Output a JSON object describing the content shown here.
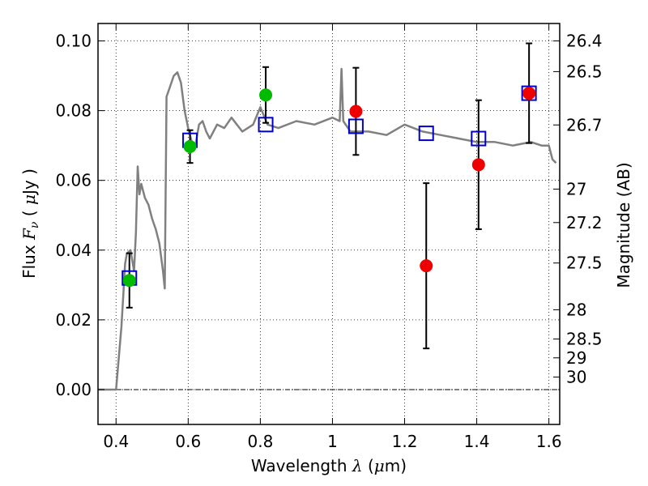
{
  "chart_data": {
    "type": "scatter",
    "xlabel": "Wavelength  λ (μm)",
    "ylabel": "Flux  Fν  ( μJy )",
    "y2label": "Magnitude (AB)",
    "xlim": [
      0.35,
      1.63
    ],
    "ylim": [
      -0.01,
      0.105
    ],
    "grid": true,
    "x_ticks": [
      0.4,
      0.6,
      0.8,
      1.0,
      1.2,
      1.4,
      1.6
    ],
    "x_tick_labels": [
      "0.4",
      "0.6",
      "0.8",
      "1",
      "1.2",
      "1.4",
      "1.6"
    ],
    "y_ticks": [
      0.0,
      0.02,
      0.04,
      0.06,
      0.08,
      0.1
    ],
    "y_tick_labels": [
      "0.00",
      "0.02",
      "0.04",
      "0.06",
      "0.08",
      "0.10"
    ],
    "right_ticks": [
      {
        "label": "26.4",
        "flux": 0.1
      },
      {
        "label": "26.5",
        "flux": 0.0912
      },
      {
        "label": "26.7",
        "flux": 0.0759
      },
      {
        "label": "27",
        "flux": 0.0575
      },
      {
        "label": "27.2",
        "flux": 0.0479
      },
      {
        "label": "27.5",
        "flux": 0.0363
      },
      {
        "label": "28",
        "flux": 0.0229
      },
      {
        "label": "28.5",
        "flux": 0.0145
      },
      {
        "label": "29",
        "flux": 0.0091
      },
      {
        "label": "30",
        "flux": 0.0036
      }
    ],
    "model_spectrum": {
      "color": "#808080",
      "x": [
        0.35,
        0.4,
        0.415,
        0.42,
        0.425,
        0.43,
        0.44,
        0.45,
        0.455,
        0.46,
        0.465,
        0.47,
        0.48,
        0.49,
        0.5,
        0.51,
        0.52,
        0.53,
        0.535,
        0.54,
        0.55,
        0.56,
        0.57,
        0.58,
        0.59,
        0.6,
        0.61,
        0.62,
        0.63,
        0.64,
        0.65,
        0.66,
        0.68,
        0.7,
        0.72,
        0.75,
        0.78,
        0.8,
        0.82,
        0.85,
        0.9,
        0.95,
        1.0,
        1.02,
        1.025,
        1.03,
        1.05,
        1.1,
        1.15,
        1.2,
        1.25,
        1.3,
        1.35,
        1.4,
        1.45,
        1.5,
        1.55,
        1.58,
        1.6,
        1.61,
        1.62
      ],
      "y": [
        0.0,
        0.0,
        0.018,
        0.027,
        0.036,
        0.039,
        0.04,
        0.034,
        0.045,
        0.064,
        0.056,
        0.059,
        0.055,
        0.053,
        0.049,
        0.046,
        0.042,
        0.034,
        0.029,
        0.084,
        0.087,
        0.09,
        0.091,
        0.088,
        0.08,
        0.075,
        0.071,
        0.07,
        0.076,
        0.077,
        0.074,
        0.072,
        0.076,
        0.075,
        0.078,
        0.074,
        0.076,
        0.081,
        0.076,
        0.075,
        0.077,
        0.076,
        0.078,
        0.077,
        0.092,
        0.077,
        0.074,
        0.074,
        0.073,
        0.076,
        0.074,
        0.073,
        0.072,
        0.071,
        0.071,
        0.07,
        0.071,
        0.07,
        0.07,
        0.066,
        0.065
      ]
    },
    "series": [
      {
        "marker": "square",
        "color": "#0000cc",
        "x": [
          0.437,
          0.605,
          0.815,
          1.065,
          1.26,
          1.405,
          1.545
        ],
        "y": [
          0.032,
          0.0715,
          0.076,
          0.0755,
          0.0735,
          0.072,
          0.085
        ]
      },
      {
        "marker": "circle",
        "color": "#00bb00",
        "x": [
          0.437,
          0.605,
          0.815
        ],
        "y": [
          0.0313,
          0.0697,
          0.0845
        ],
        "err": [
          0.0078,
          0.0047,
          0.008
        ]
      },
      {
        "marker": "circle",
        "color": "#ee0000",
        "x": [
          1.065,
          1.26,
          1.405,
          1.545
        ],
        "y": [
          0.0798,
          0.0355,
          0.0645,
          0.085
        ],
        "err": [
          0.0125,
          0.0237,
          0.0185,
          0.0143
        ]
      }
    ]
  }
}
